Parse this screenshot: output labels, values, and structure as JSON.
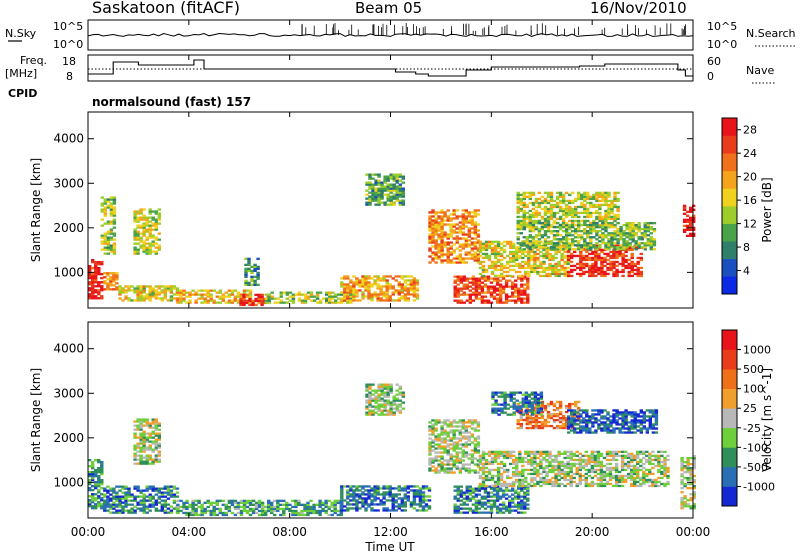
{
  "header": {
    "title": "Saskatoon (fitACF)",
    "beam": "Beam 05",
    "date": "16/Nov/2010"
  },
  "summary": {
    "nsky_label": "N.Sky",
    "nsky_ticks": [
      "10^5",
      "10^0"
    ],
    "nsearch_label": "N.Search",
    "nsearch_ticks": [
      "10^5",
      "10^0"
    ],
    "freq_label": "Freq.",
    "freq_unit": "[MHz]",
    "freq_ticks": [
      18,
      8
    ],
    "nave_label": "Nave",
    "nave_ticks": [
      60,
      0
    ],
    "cpid_label": "CPID",
    "cpid_value": "normalsound (fast) 157"
  },
  "chart_data": [
    {
      "type": "heatmap",
      "panel": "power",
      "xlabel": "",
      "ylabel": "Slant Range [km]",
      "x_ticks": [
        "00:00",
        "04:00",
        "08:00",
        "12:00",
        "16:00",
        "20:00",
        "00:00"
      ],
      "y_ticks": [
        1000,
        2000,
        3000,
        4000
      ],
      "ylim": [
        200,
        4600
      ],
      "colorbar": {
        "label": "Power [dB]",
        "ticks": [
          4,
          8,
          12,
          16,
          20,
          24,
          28
        ],
        "colors": [
          "#0a28e6",
          "#1a4fc0",
          "#2f7f6a",
          "#4aa24a",
          "#9ccd2a",
          "#f0d21e",
          "#f3a41b",
          "#f0701b",
          "#e83c1a",
          "#e8141a"
        ],
        "range": [
          0,
          30
        ]
      },
      "regions": [
        {
          "t": [
            0.0,
            0.6
          ],
          "r": [
            400,
            1300
          ],
          "level": 0.95
        },
        {
          "t": [
            0.6,
            1.2
          ],
          "r": [
            600,
            1000
          ],
          "level": 0.7
        },
        {
          "t": [
            0.5,
            1.0
          ],
          "r": [
            1400,
            2700
          ],
          "level": 0.45
        },
        {
          "t": [
            1.8,
            2.8
          ],
          "r": [
            1400,
            2400
          ],
          "level": 0.5
        },
        {
          "t": [
            1.2,
            3.5
          ],
          "r": [
            350,
            700
          ],
          "level": 0.55
        },
        {
          "t": [
            3.5,
            6.5
          ],
          "r": [
            300,
            600
          ],
          "level": 0.6
        },
        {
          "t": [
            6.0,
            7.2
          ],
          "r": [
            250,
            500
          ],
          "level": 0.85
        },
        {
          "t": [
            7.0,
            10.5
          ],
          "r": [
            300,
            550
          ],
          "level": 0.45
        },
        {
          "t": [
            10.0,
            13.0
          ],
          "r": [
            350,
            900
          ],
          "level": 0.65
        },
        {
          "t": [
            11.0,
            12.5
          ],
          "r": [
            2500,
            3200
          ],
          "level": 0.35
        },
        {
          "t": [
            13.5,
            15.5
          ],
          "r": [
            1200,
            2400
          ],
          "level": 0.7
        },
        {
          "t": [
            14.5,
            17.5
          ],
          "r": [
            300,
            900
          ],
          "level": 0.85
        },
        {
          "t": [
            15.5,
            19.0
          ],
          "r": [
            900,
            1700
          ],
          "level": 0.55
        },
        {
          "t": [
            17.0,
            21.0
          ],
          "r": [
            2000,
            2800
          ],
          "level": 0.5
        },
        {
          "t": [
            19.0,
            22.0
          ],
          "r": [
            900,
            1600
          ],
          "level": 0.9
        },
        {
          "t": [
            17.0,
            22.5
          ],
          "r": [
            1500,
            2100
          ],
          "level": 0.4
        },
        {
          "t": [
            23.6,
            24.0
          ],
          "r": [
            1800,
            2500
          ],
          "level": 0.95
        },
        {
          "t": [
            6.2,
            6.8
          ],
          "r": [
            700,
            1300
          ],
          "level": 0.3
        }
      ]
    },
    {
      "type": "heatmap",
      "panel": "velocity",
      "xlabel": "Time UT",
      "ylabel": "Slant Range [km]",
      "x_ticks": [
        "00:00",
        "04:00",
        "08:00",
        "12:00",
        "16:00",
        "20:00",
        "00:00"
      ],
      "y_ticks": [
        1000,
        2000,
        3000,
        4000
      ],
      "ylim": [
        200,
        4600
      ],
      "colorbar": {
        "label": "Velocity [m s^-1]",
        "ticks": [
          1000,
          500,
          100,
          25,
          -25,
          -100,
          -500,
          -1000
        ],
        "colors": [
          "#1428d2",
          "#2a6fb6",
          "#2f8f5a",
          "#6fcf3a",
          "#b8b8b8",
          "#f0a02a",
          "#f0701a",
          "#e83c1a",
          "#e8141a"
        ],
        "range": [
          -1000,
          1000
        ]
      },
      "regions": [
        {
          "t": [
            0.0,
            0.6
          ],
          "r": [
            400,
            1500
          ],
          "level": 0.25
        },
        {
          "t": [
            0.6,
            3.5
          ],
          "r": [
            300,
            900
          ],
          "level": 0.22
        },
        {
          "t": [
            1.8,
            2.8
          ],
          "r": [
            1400,
            2400
          ],
          "level": 0.45
        },
        {
          "t": [
            3.5,
            10.0
          ],
          "r": [
            250,
            600
          ],
          "level": 0.3
        },
        {
          "t": [
            10.0,
            13.5
          ],
          "r": [
            350,
            900
          ],
          "level": 0.2
        },
        {
          "t": [
            11.0,
            12.5
          ],
          "r": [
            2500,
            3200
          ],
          "level": 0.45
        },
        {
          "t": [
            13.5,
            15.5
          ],
          "r": [
            1200,
            2400
          ],
          "level": 0.45
        },
        {
          "t": [
            14.5,
            17.5
          ],
          "r": [
            300,
            900
          ],
          "level": 0.22
        },
        {
          "t": [
            15.5,
            23.0
          ],
          "r": [
            900,
            1700
          ],
          "level": 0.45
        },
        {
          "t": [
            17.0,
            19.5
          ],
          "r": [
            2200,
            2800
          ],
          "level": 0.7
        },
        {
          "t": [
            19.0,
            22.5
          ],
          "r": [
            2100,
            2600
          ],
          "level": 0.15
        },
        {
          "t": [
            16.0,
            18.0
          ],
          "r": [
            2500,
            3000
          ],
          "level": 0.2
        },
        {
          "t": [
            23.5,
            24.0
          ],
          "r": [
            400,
            1600
          ],
          "level": 0.45
        }
      ]
    }
  ]
}
